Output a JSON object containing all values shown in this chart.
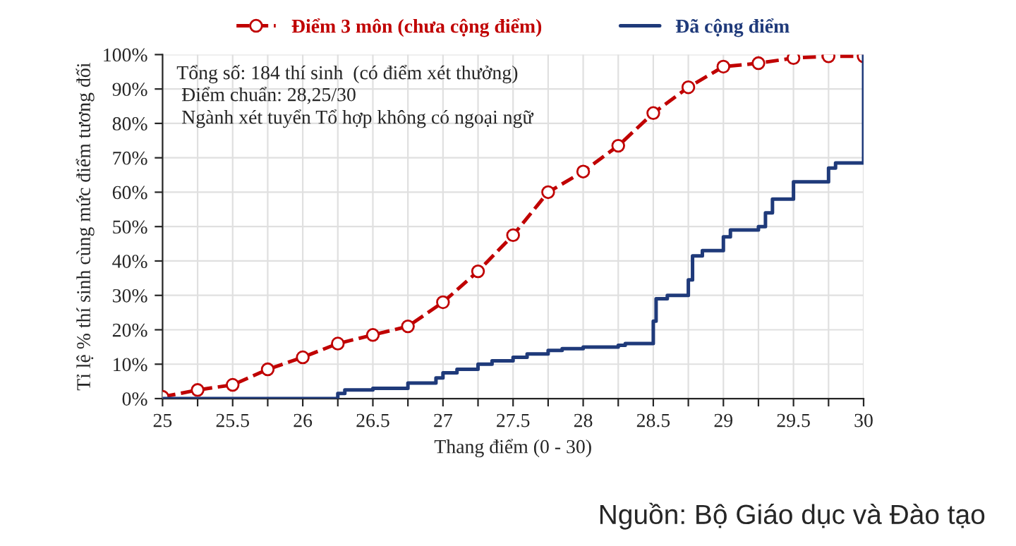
{
  "chart_data": {
    "type": "line",
    "xlabel": "Thang điểm (0 - 30)",
    "ylabel": "Tỉ lệ % thí sinh cùng mức điểm tương đối",
    "annotations": [
      "Tổng số: 184 thí sinh  (có điểm xét thưởng)\n Điểm chuẩn: 28,25/30\n Ngành xét tuyển Tổ hợp không có ngoại ngữ",
      "Nguồn: Bộ Giáo dục và Đào tạo"
    ],
    "series": [
      {
        "name": "Điểm 3 môn (chưa cộng điểm)",
        "color": "#c00000",
        "marker": "circle",
        "line_style": "dashed",
        "x": [
          25,
          25.25,
          25.5,
          25.75,
          26,
          26.25,
          26.5,
          26.75,
          27,
          27.25,
          27.5,
          27.75,
          28,
          28.25,
          28.5,
          28.75,
          29,
          29.25,
          29.5,
          29.75,
          30
        ],
        "values": [
          0.5,
          2.5,
          4,
          8.5,
          12,
          16,
          18.5,
          21,
          28,
          37,
          47.5,
          60,
          66,
          73.5,
          83,
          90.5,
          96.5,
          97.5,
          99,
          99.5,
          99.5
        ]
      },
      {
        "name": "Đã cộng điểm",
        "color": "#1f3a7a",
        "type": "step",
        "marker": "none",
        "line_style": "solid",
        "x": [
          25,
          26.25,
          26.3,
          26.5,
          26.75,
          26.95,
          27,
          27.1,
          27.25,
          27.35,
          27.5,
          27.6,
          27.75,
          27.85,
          28,
          28.25,
          28.3,
          28.5,
          28.52,
          28.6,
          28.75,
          28.78,
          28.85,
          29,
          29.05,
          29.25,
          29.3,
          29.35,
          29.5,
          29.75,
          29.8,
          30
        ],
        "values": [
          0,
          1.5,
          2.5,
          3,
          4.5,
          6,
          7.5,
          8.5,
          10,
          11,
          12,
          13,
          14,
          14.5,
          15,
          15.5,
          16,
          22.5,
          29,
          30,
          34.5,
          41.5,
          43,
          47,
          49,
          50,
          54,
          58,
          63,
          67,
          68.5,
          100
        ]
      }
    ],
    "xlim": [
      25,
      30
    ],
    "ylim": [
      0,
      100
    ],
    "xticks": [
      25,
      {
        "value": 25.25,
        "label": null
      },
      25.5,
      {
        "value": 25.75,
        "label": null
      },
      26,
      {
        "value": 26.25,
        "label": null
      },
      26.5,
      {
        "value": 26.75,
        "label": null
      },
      27,
      {
        "value": 27.25,
        "label": null
      },
      27.5,
      {
        "value": 27.75,
        "label": null
      },
      28,
      {
        "value": 28.25,
        "label": null
      },
      28.5,
      {
        "value": 28.75,
        "label": null
      },
      29,
      {
        "value": 29.25,
        "label": null
      },
      29.5,
      {
        "value": 29.75,
        "label": null
      },
      30
    ],
    "yticks": [
      {
        "value": 0,
        "label": "0%"
      },
      {
        "value": 10,
        "label": "10%"
      },
      {
        "value": 20,
        "label": "20%"
      },
      {
        "value": 30,
        "label": "30%"
      },
      {
        "value": 40,
        "label": "40%"
      },
      {
        "value": 50,
        "label": "50%"
      },
      {
        "value": 60,
        "label": "60%"
      },
      {
        "value": 70,
        "label": "70%"
      },
      {
        "value": 80,
        "label": "80%"
      },
      {
        "value": 90,
        "label": "90%"
      },
      {
        "value": 100,
        "label": "100%"
      }
    ],
    "grid": true,
    "legend": "top"
  }
}
